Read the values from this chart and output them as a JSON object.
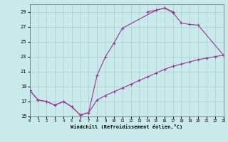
{
  "background_color": "#c8eaea",
  "grid_color": "#aacccc",
  "line_color": "#993399",
  "xlabel": "Windchill (Refroidissement éolien,°C)",
  "xlim": [
    0,
    23
  ],
  "ylim": [
    15,
    30
  ],
  "yticks": [
    15,
    17,
    19,
    21,
    23,
    25,
    27,
    29
  ],
  "xticks": [
    0,
    1,
    2,
    3,
    4,
    5,
    6,
    7,
    8,
    9,
    10,
    11,
    12,
    13,
    14,
    15,
    16,
    17,
    18,
    19,
    20,
    21,
    22,
    23
  ],
  "curve1_x": [
    0,
    1,
    2,
    3,
    4,
    5,
    6,
    7,
    8,
    9,
    10,
    11,
    15,
    16,
    17
  ],
  "curve1_y": [
    18.5,
    17.2,
    17.0,
    16.5,
    17.0,
    16.3,
    15.2,
    15.5,
    20.5,
    23.0,
    24.8,
    26.8,
    29.2,
    29.5,
    29.0
  ],
  "curve2_x": [
    14,
    15,
    16,
    17,
    18,
    19,
    20,
    23
  ],
  "curve2_y": [
    29.0,
    29.2,
    29.5,
    28.9,
    27.5,
    27.3,
    27.2,
    23.2
  ],
  "curve3_x": [
    0,
    1,
    2,
    3,
    4,
    5,
    6,
    7,
    8,
    9,
    10,
    11,
    12,
    13,
    14,
    15,
    16,
    17,
    18,
    19,
    20,
    21,
    22,
    23
  ],
  "curve3_y": [
    18.5,
    17.2,
    17.0,
    16.5,
    17.0,
    16.3,
    15.2,
    15.5,
    17.2,
    17.8,
    18.3,
    18.8,
    19.3,
    19.8,
    20.3,
    20.8,
    21.3,
    21.7,
    22.0,
    22.3,
    22.6,
    22.8,
    23.0,
    23.2
  ]
}
